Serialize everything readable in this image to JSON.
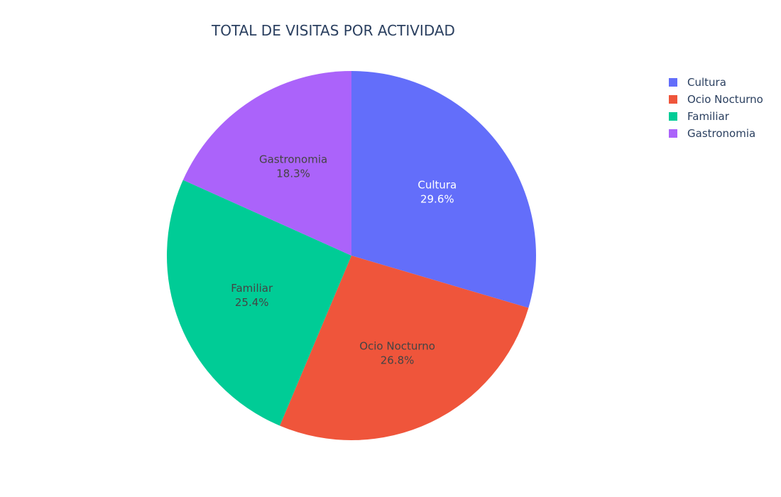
{
  "chart_data": {
    "type": "pie",
    "title": "TOTAL DE VISITAS POR ACTIVIDAD",
    "categories": [
      "Cultura",
      "Ocio Nocturno",
      "Familiar",
      "Gastronomia"
    ],
    "values": [
      29.6,
      26.8,
      25.4,
      18.3
    ],
    "labels": [
      "29.6%",
      "26.8%",
      "25.4%",
      "18.3%"
    ],
    "colors": [
      "#636efa",
      "#ef553b",
      "#00cc96",
      "#ab63fa"
    ],
    "label_colors": [
      "#ffffff",
      "#444444",
      "#444444",
      "#444444"
    ],
    "legend": {
      "placement": "top-right",
      "entries": [
        "Cultura",
        "Ocio Nocturno",
        "Familiar",
        "Gastronomia"
      ]
    },
    "direction": "clockwise",
    "start": "top"
  }
}
